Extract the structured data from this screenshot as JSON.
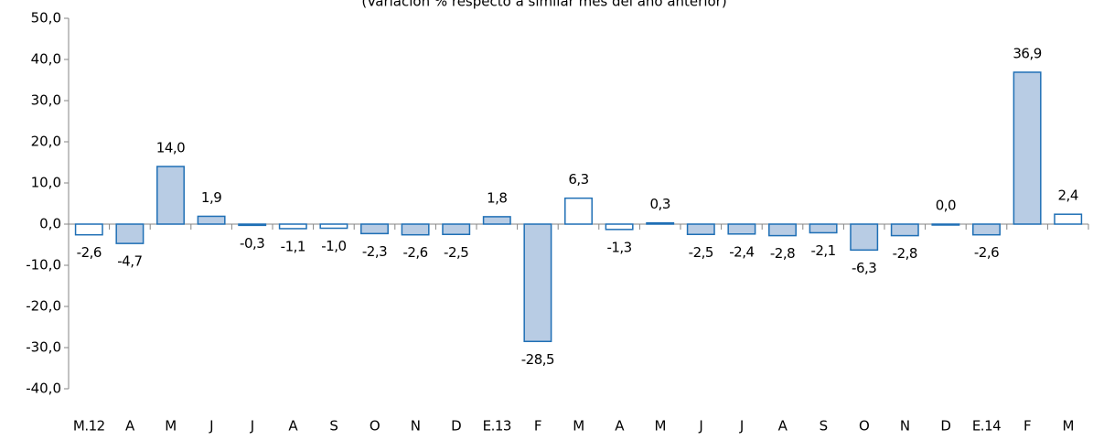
{
  "chart_data": {
    "type": "bar",
    "subtitle": "(Variación % respecto a similar mes del año anterior)",
    "categories": [
      "M.12",
      "A",
      "M",
      "J",
      "J",
      "A",
      "S",
      "O",
      "N",
      "D",
      "E.13",
      "F",
      "M",
      "A",
      "M",
      "J",
      "J",
      "A",
      "S",
      "O",
      "N",
      "D",
      "E.14",
      "F",
      "M"
    ],
    "values": [
      -2.6,
      -4.7,
      14.0,
      1.9,
      -0.3,
      -1.1,
      -1.0,
      -2.3,
      -2.6,
      -2.5,
      1.8,
      -28.5,
      6.3,
      -1.3,
      0.3,
      -2.5,
      -2.4,
      -2.8,
      -2.1,
      -6.3,
      -2.8,
      0.0,
      -2.6,
      36.9,
      2.4
    ],
    "value_labels": [
      "-2,6",
      "-4,7",
      "14,0",
      "1,9",
      "-0,3",
      "-1,1",
      "-1,0",
      "-2,3",
      "-2,6",
      "-2,5",
      "1,8",
      "-28,5",
      "6,3",
      "-1,3",
      "0,3",
      "-2,5",
      "-2,4",
      "-2,8",
      "-2,1",
      "-6,3",
      "-2,8",
      "0,0",
      "-2,6",
      "36,9",
      "2,4"
    ],
    "colors": [
      "#ffffff",
      "#b8cce4",
      "#b8cce4",
      "#b8cce4",
      "#ffffff",
      "#ffffff",
      "#ffffff",
      "#b8cce4",
      "#b8cce4",
      "#b8cce4",
      "#b8cce4",
      "#b8cce4",
      "#ffffff",
      "#ffffff",
      "#b8cce4",
      "#b8cce4",
      "#b8cce4",
      "#b8cce4",
      "#b8cce4",
      "#b8cce4",
      "#b8cce4",
      "#b8cce4",
      "#b8cce4",
      "#b8cce4",
      "#ffffff"
    ],
    "edge_color": "#1f6fb5",
    "ylim": [
      -40,
      50
    ],
    "yticks": [
      {
        "value": -40,
        "label": "-40,0"
      },
      {
        "value": -30,
        "label": "-30,0"
      },
      {
        "value": -20,
        "label": "-20,0"
      },
      {
        "value": -10,
        "label": "-10,0"
      },
      {
        "value": 0,
        "label": "0,0"
      },
      {
        "value": 10,
        "label": "10,0"
      },
      {
        "value": 20,
        "label": "20,0"
      },
      {
        "value": 30,
        "label": "30,0"
      },
      {
        "value": 40,
        "label": "40,0"
      },
      {
        "value": 50,
        "label": "50,0"
      }
    ]
  }
}
